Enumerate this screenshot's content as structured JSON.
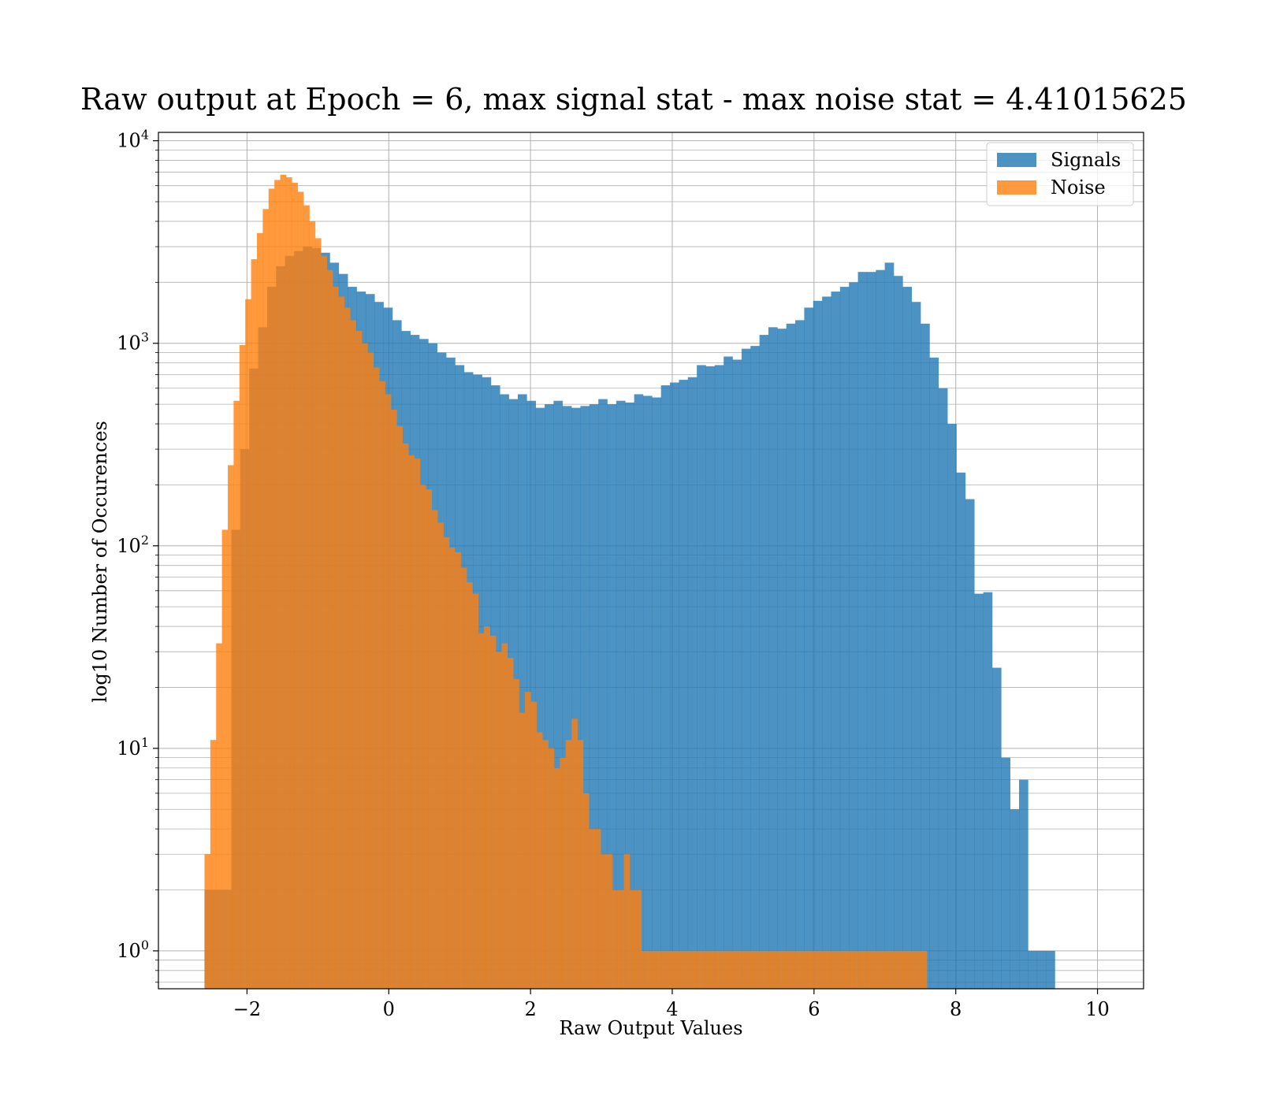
{
  "chart_data": {
    "type": "bar",
    "title": "Raw output at Epoch = 6, max signal stat - max noise stat = 4.41015625",
    "xlabel": "Raw Output Values",
    "ylabel": "log10 Number of Occurences",
    "xlim": [
      -3.25,
      10.65
    ],
    "ylim": [
      0.65,
      11000
    ],
    "y_scale": "log",
    "grid": true,
    "legend_position": "top-right",
    "x_ticks": [
      {
        "value": -2,
        "label": "−2"
      },
      {
        "value": 0,
        "label": "0"
      },
      {
        "value": 2,
        "label": "2"
      },
      {
        "value": 4,
        "label": "4"
      },
      {
        "value": 6,
        "label": "6"
      },
      {
        "value": 8,
        "label": "8"
      },
      {
        "value": 10,
        "label": "10"
      }
    ],
    "y_ticks": [
      {
        "value": 1,
        "base": "10",
        "exp": "0"
      },
      {
        "value": 10,
        "base": "10",
        "exp": "1"
      },
      {
        "value": 100,
        "base": "10",
        "exp": "2"
      },
      {
        "value": 1000,
        "base": "10",
        "exp": "3"
      },
      {
        "value": 10000,
        "base": "10",
        "exp": "4"
      }
    ],
    "series": [
      {
        "name": "Signals",
        "color": "#1f77b4",
        "opacity": 0.8,
        "bin_start": -2.6,
        "bin_width": 0.1263,
        "values": [
          2,
          2,
          2,
          120,
          300,
          750,
          1200,
          1900,
          2400,
          2700,
          2850,
          3000,
          2950,
          2800,
          2500,
          2200,
          1900,
          1800,
          1750,
          1600,
          1500,
          1300,
          1150,
          1100,
          1050,
          1000,
          900,
          850,
          780,
          720,
          700,
          680,
          620,
          560,
          530,
          560,
          520,
          480,
          500,
          520,
          490,
          480,
          490,
          500,
          530,
          500,
          520,
          510,
          560,
          550,
          540,
          620,
          640,
          660,
          680,
          780,
          770,
          780,
          860,
          830,
          940,
          970,
          1100,
          1200,
          1180,
          1250,
          1300,
          1500,
          1620,
          1700,
          1800,
          1900,
          2000,
          2250,
          2250,
          2300,
          2500,
          2150,
          1900,
          1600,
          1250,
          850,
          600,
          400,
          230,
          170,
          58,
          59,
          25,
          9,
          5,
          7,
          1,
          1,
          1
        ]
      },
      {
        "name": "Noise",
        "color": "#ff7f0e",
        "opacity": 0.8,
        "bin_start": -2.6,
        "bin_width": 0.0822,
        "values": [
          3,
          11,
          33,
          120,
          250,
          520,
          980,
          1650,
          2600,
          3500,
          4600,
          5800,
          6400,
          6800,
          6600,
          6200,
          5600,
          4800,
          4000,
          3300,
          2700,
          2300,
          1900,
          1700,
          1500,
          1300,
          1150,
          1000,
          900,
          760,
          650,
          560,
          470,
          390,
          320,
          280,
          270,
          200,
          190,
          150,
          130,
          110,
          98,
          93,
          78,
          66,
          58,
          37,
          40,
          36,
          30,
          33,
          28,
          22,
          15,
          19,
          17,
          12,
          11,
          10,
          8,
          9,
          11,
          14,
          11,
          6,
          4,
          4,
          3,
          3,
          2,
          2,
          3,
          2,
          2,
          1,
          1,
          1,
          1,
          1,
          1,
          1,
          1,
          1,
          1,
          1,
          1,
          1,
          1,
          1,
          1,
          1,
          1,
          1,
          1,
          1,
          1,
          1,
          1,
          1,
          1,
          1,
          1,
          1,
          1,
          1,
          1,
          1,
          1,
          1,
          1,
          1,
          1,
          1,
          1,
          1,
          1,
          1,
          1,
          1,
          1,
          1,
          1,
          1
        ]
      }
    ]
  }
}
